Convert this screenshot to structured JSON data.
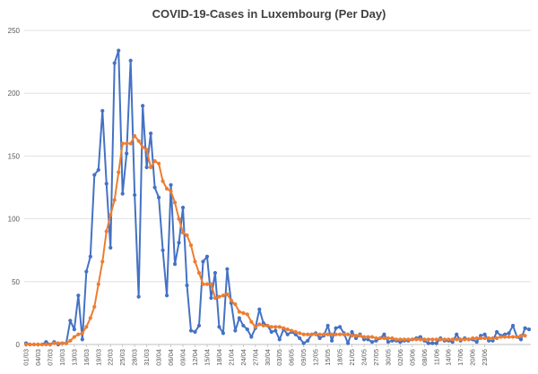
{
  "chart_data": {
    "type": "line",
    "title": "COVID-19-Cases in Luxembourg (Per Day)",
    "ylim": [
      0,
      250
    ],
    "yticks": [
      0,
      50,
      100,
      150,
      200,
      250
    ],
    "grid": true,
    "legend": "none",
    "x_tick_labels": [
      "01/03",
      "04/03",
      "07/03",
      "10/03",
      "13/03",
      "16/03",
      "19/03",
      "22/03",
      "25/03",
      "28/03",
      "31/03",
      "03/04",
      "06/04",
      "09/04",
      "12/04",
      "15/04",
      "18/04",
      "21/04",
      "24/04",
      "27/04",
      "30/04",
      "03/05",
      "06/05",
      "09/05",
      "12/05",
      "15/05",
      "18/05",
      "21/05",
      "24/05",
      "27/05",
      "30/05",
      "02/06",
      "05/06",
      "08/06",
      "11/06",
      "14/06",
      "17/06",
      "20/06",
      "23/06"
    ],
    "series": [
      {
        "color": "#4472C4",
        "values": [
          1,
          0,
          0,
          0,
          0,
          2,
          0,
          2,
          0,
          1,
          1,
          19,
          12,
          39,
          4,
          58,
          70,
          135,
          139,
          186,
          128,
          77,
          224,
          234,
          120,
          152,
          226,
          119,
          38,
          190,
          141,
          168,
          125,
          117,
          75,
          39,
          127,
          64,
          81,
          109,
          47,
          11,
          10,
          15,
          66,
          70,
          37,
          57,
          14,
          9,
          60,
          33,
          11,
          21,
          15,
          12,
          6,
          13,
          28,
          17,
          15,
          10,
          11,
          4,
          12,
          8,
          10,
          8,
          5,
          1,
          3,
          8,
          9,
          5,
          7,
          15,
          3,
          13,
          14,
          9,
          1,
          10,
          5,
          8,
          4,
          4,
          2,
          3,
          5,
          8,
          2,
          3,
          3,
          2,
          3,
          3,
          4,
          5,
          6,
          3,
          1,
          1,
          1,
          5,
          3,
          3,
          2,
          8,
          3,
          5,
          4,
          4,
          2,
          7,
          8,
          3,
          3,
          10,
          7,
          8,
          9,
          15,
          6,
          4,
          13,
          12
        ]
      },
      {
        "color": "#ED7D31",
        "values": [
          0,
          0,
          0,
          0,
          0,
          0,
          0,
          1,
          1,
          1,
          1,
          3,
          6,
          8,
          9,
          14,
          21,
          30,
          48,
          66,
          90,
          103,
          115,
          137,
          160,
          160,
          160,
          166,
          162,
          157,
          155,
          141,
          146,
          144,
          130,
          124,
          122,
          113,
          100,
          89,
          87,
          79,
          66,
          57,
          48,
          48,
          48,
          37,
          38,
          39,
          40,
          35,
          32,
          26,
          25,
          24,
          18,
          14,
          16,
          15,
          15,
          14,
          14,
          14,
          13,
          12,
          11,
          10,
          9,
          8,
          8,
          8,
          8,
          8,
          8,
          8,
          8,
          8,
          8,
          8,
          8,
          7,
          7,
          7,
          6,
          6,
          6,
          5,
          5,
          5,
          5,
          5,
          4,
          4,
          4,
          4,
          4,
          4,
          4,
          4,
          4,
          4,
          4,
          4,
          4,
          4,
          4,
          4,
          4,
          4,
          4,
          5,
          5,
          5,
          5,
          5,
          5,
          5,
          6,
          6,
          6,
          6,
          6,
          7,
          7
        ]
      }
    ]
  }
}
